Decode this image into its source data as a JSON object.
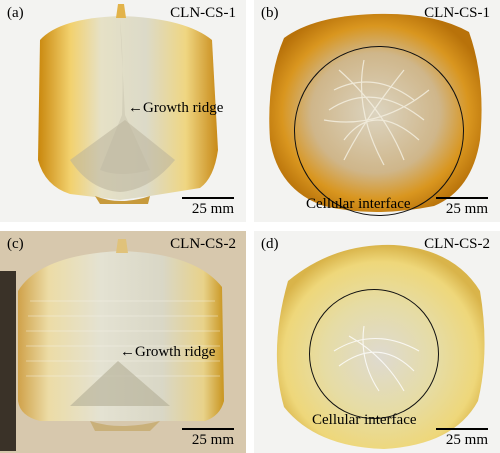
{
  "panels": [
    {
      "label": "(a)",
      "sample": "CLN-CS-1",
      "annotation": "Growth ridge",
      "scale": "25 mm"
    },
    {
      "label": "(b)",
      "sample": "CLN-CS-1",
      "annotation": "Cellular interface",
      "scale": "25 mm"
    },
    {
      "label": "(c)",
      "sample": "CLN-CS-2",
      "annotation": "Growth ridge",
      "scale": "25 mm"
    },
    {
      "label": "(d)",
      "sample": "CLN-CS-2",
      "annotation": "Cellular interface",
      "scale": "25 mm"
    }
  ],
  "colors": {
    "amber_dark": "#c8860e",
    "amber_light": "#f1d579",
    "crystal_clear": "#e8e6d6",
    "background_white": "#f4f4f2",
    "background_tan": "#d9c9ae"
  }
}
